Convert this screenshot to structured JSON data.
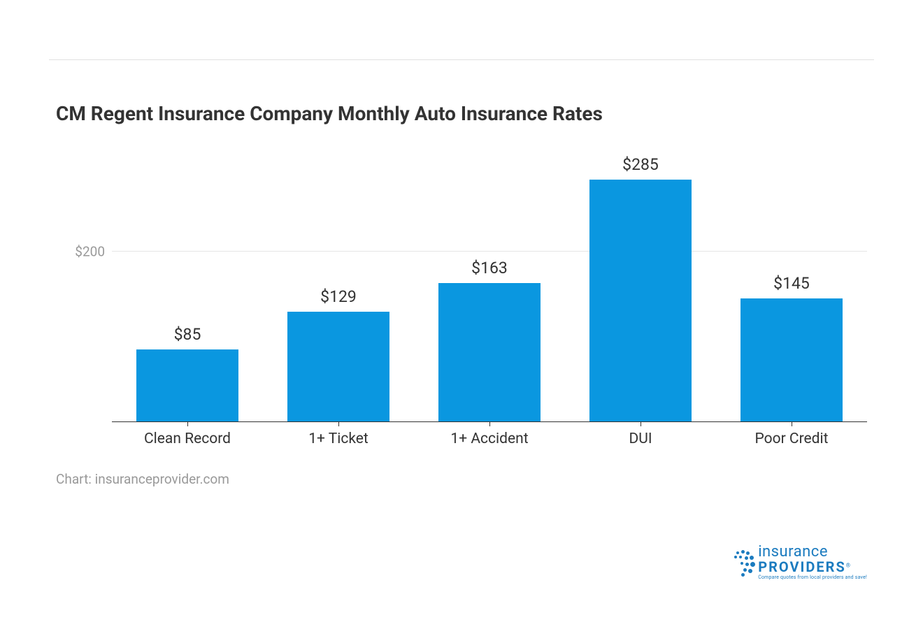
{
  "chart": {
    "type": "bar",
    "title": "CM Regent Insurance Company Monthly Auto Insurance Rates",
    "title_fontsize": 28,
    "title_color": "#333333",
    "source_label": "Chart: insuranceprovider.com",
    "source_color": "#999999",
    "categories": [
      "Clean Record",
      "1+ Ticket",
      "1+ Accident",
      "DUI",
      "Poor Credit"
    ],
    "values": [
      85,
      129,
      163,
      285,
      145
    ],
    "value_labels": [
      "$85",
      "$129",
      "$163",
      "$285",
      "$145"
    ],
    "bar_color": "#0a97e0",
    "bar_width_pct": 68,
    "y_ticks": [
      200
    ],
    "y_tick_labels": [
      "$200"
    ],
    "y_max": 320,
    "grid_color": "#e6e6e6",
    "axis_color": "#333333",
    "background_color": "#ffffff",
    "x_label_fontsize": 21,
    "value_label_fontsize": 23,
    "y_label_color": "#999999"
  },
  "logo": {
    "word1": "insurance",
    "word2": "PROVIDERS",
    "reg": "®",
    "tagline": "Compare quotes from local providers and save!",
    "color": "#1b7bbf"
  }
}
